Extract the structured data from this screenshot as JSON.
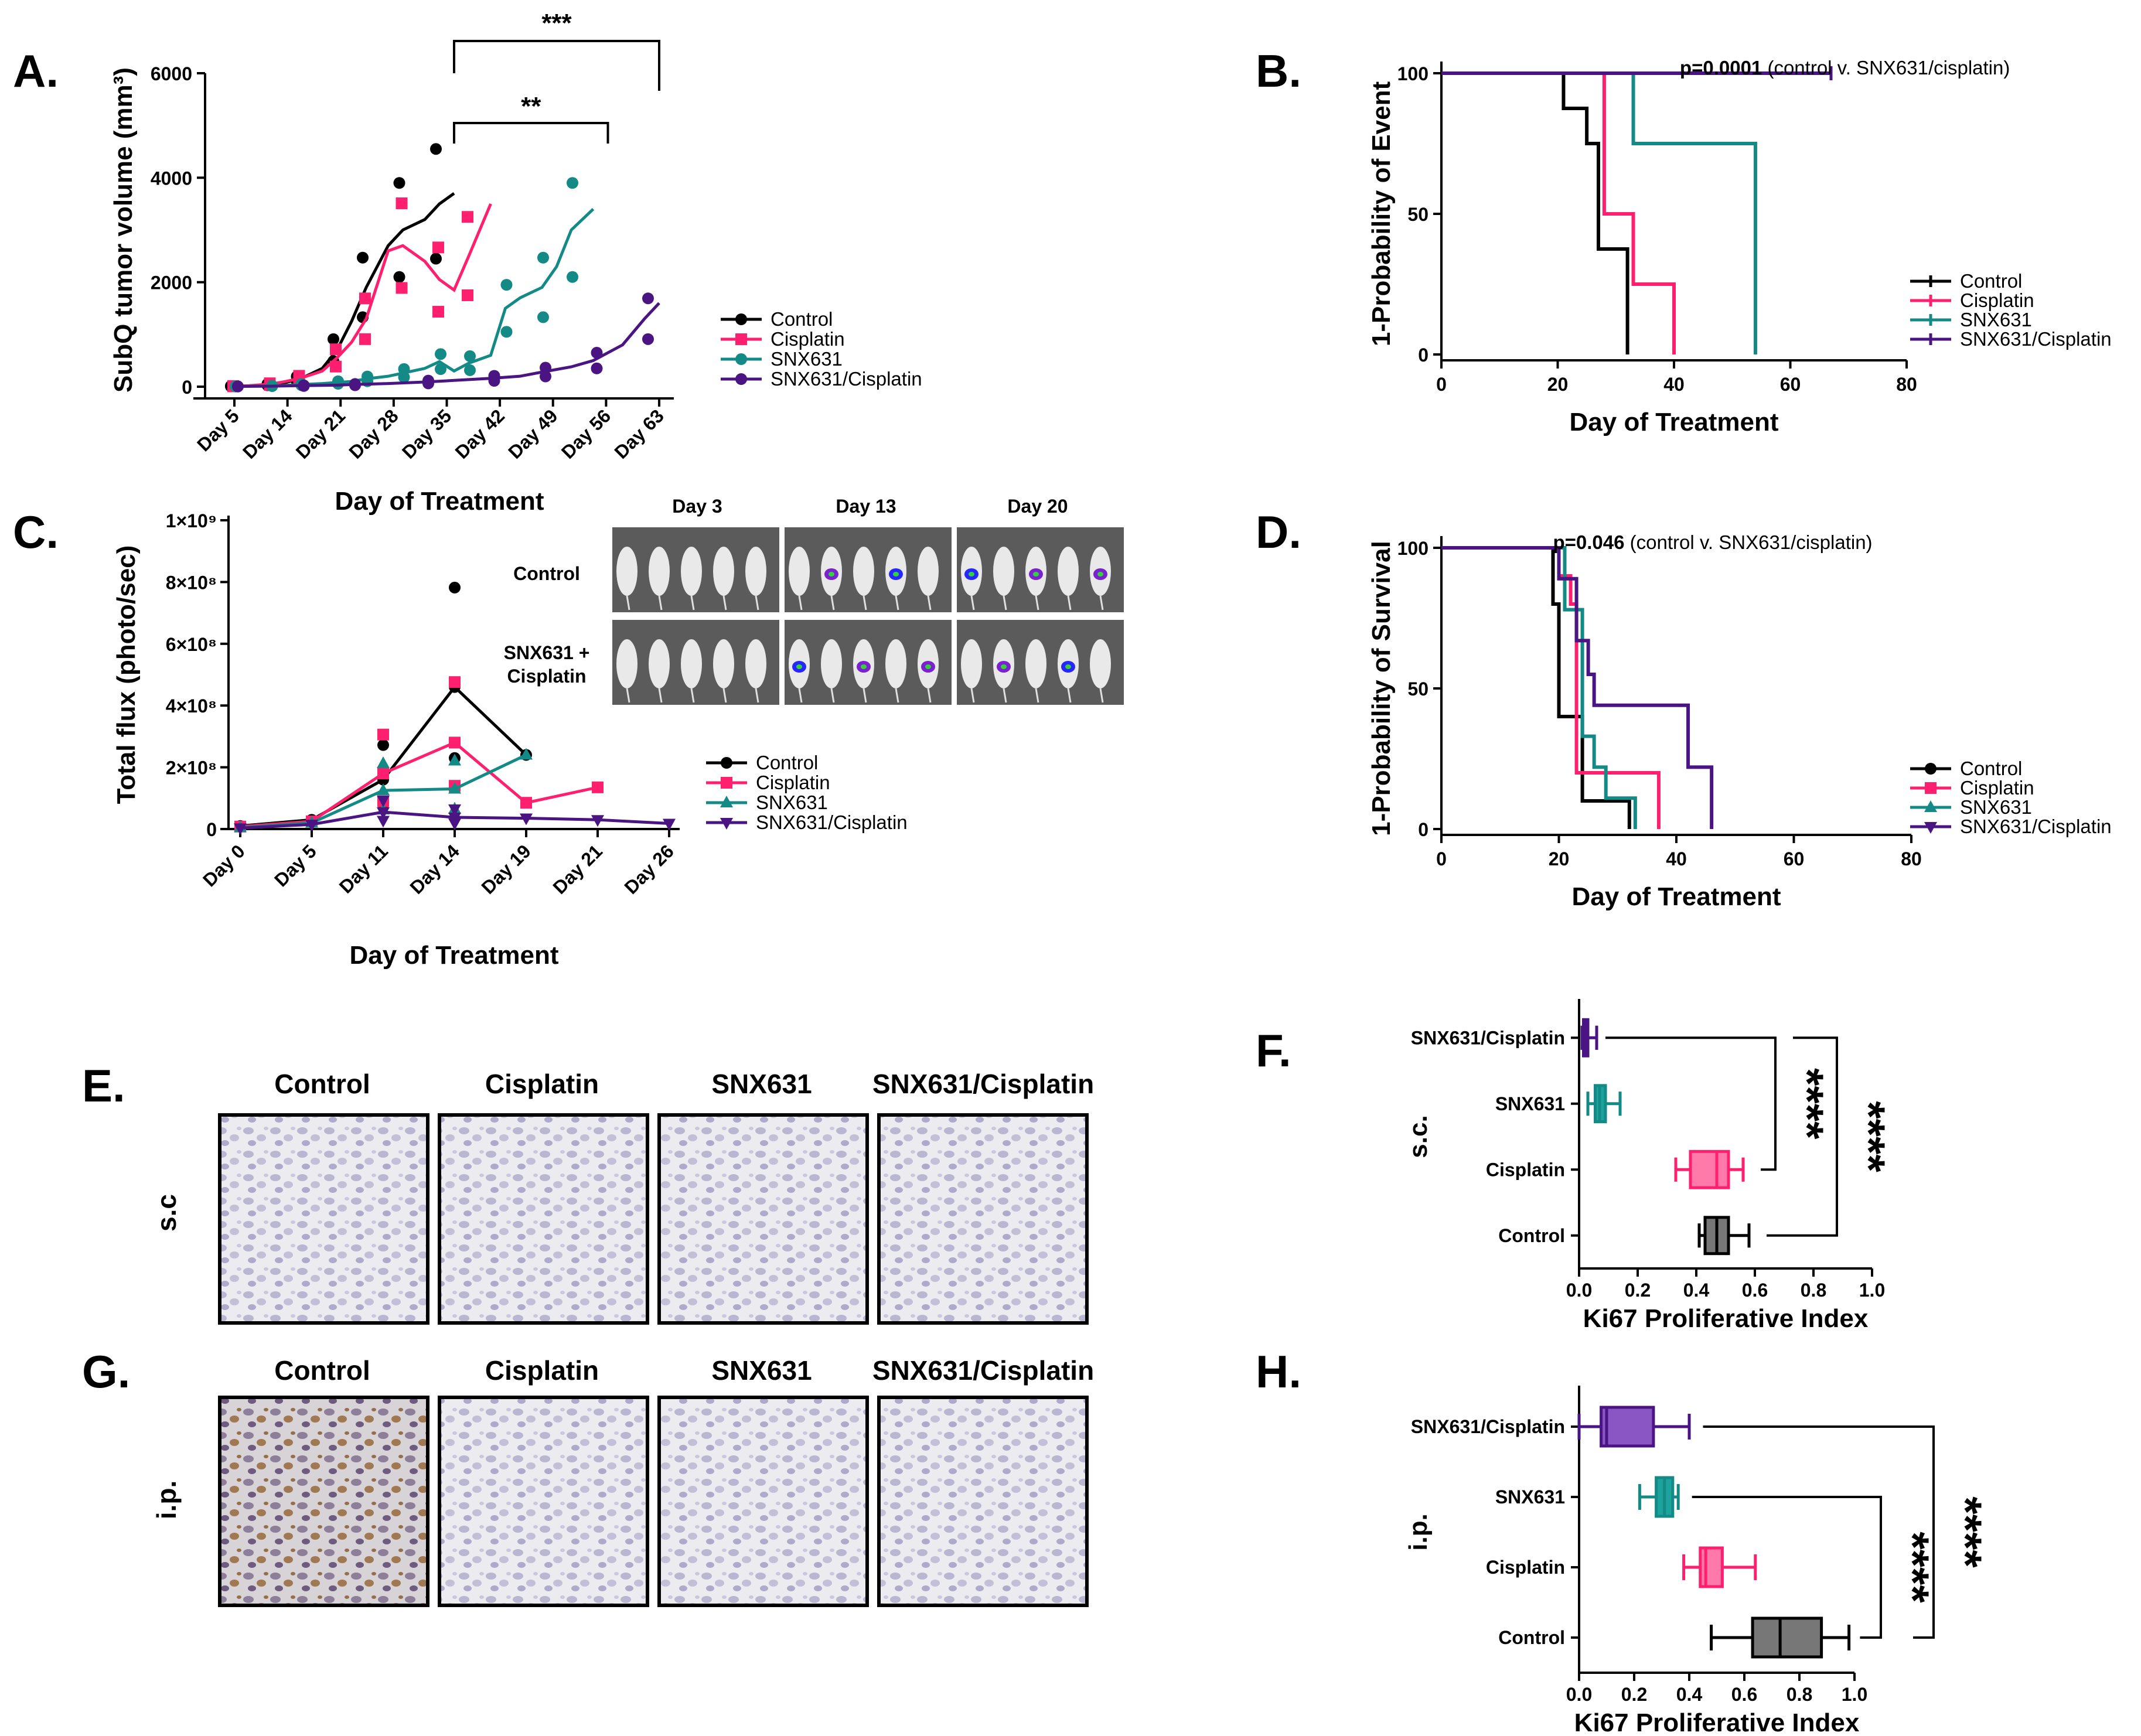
{
  "panels": {
    "a": "A.",
    "b": "B.",
    "c": "C.",
    "d": "D.",
    "e": "E.",
    "f": "F.",
    "g": "G.",
    "h": "H."
  },
  "colors": {
    "control": "#000000",
    "cisplatin": "#ff1f6f",
    "snx631": "#138a86",
    "combo": "#4b1483"
  },
  "series_names": [
    "Control",
    "Cisplatin",
    "SNX631",
    "SNX631/Cisplatin"
  ],
  "chart_data": [
    {
      "id": "A",
      "type": "scatter",
      "ylabel": "SubQ tumor volume (mm³)",
      "xlabel": "Day of Treatment",
      "ylim": [
        0,
        6000
      ],
      "yticks": [
        "0",
        "2000",
        "4000",
        "6000"
      ],
      "categories": [
        "Day 5",
        "Day 14",
        "Day 21",
        "Day 28",
        "Day 35",
        "Day 42",
        "Day 49",
        "Day 56",
        "Day 63"
      ],
      "annotations": [
        "**",
        "***"
      ],
      "series": [
        {
          "name": "Control",
          "x": [
            5,
            7,
            10,
            12,
            14,
            17,
            19,
            21,
            23,
            26,
            28,
            31,
            33,
            35
          ],
          "values": [
            10,
            15,
            40,
            80,
            150,
            350,
            700,
            1250,
            1900,
            2700,
            3000,
            3200,
            3500,
            3700
          ]
        },
        {
          "name": "Cisplatin",
          "x": [
            5,
            7,
            10,
            12,
            14,
            17,
            19,
            21,
            23,
            26,
            28,
            31,
            33,
            35,
            37,
            40
          ],
          "values": [
            10,
            20,
            50,
            100,
            160,
            300,
            550,
            850,
            1300,
            2600,
            2700,
            2400,
            2050,
            1850,
            2500,
            3500
          ]
        },
        {
          "name": "SNX631",
          "x": [
            5,
            7,
            10,
            12,
            14,
            17,
            19,
            21,
            23,
            26,
            28,
            31,
            33,
            35,
            37,
            40,
            42,
            44,
            47,
            49,
            51,
            54
          ],
          "values": [
            5,
            8,
            15,
            25,
            40,
            60,
            80,
            100,
            150,
            200,
            260,
            350,
            480,
            300,
            450,
            600,
            1500,
            1700,
            1900,
            2300,
            3000,
            3400
          ]
        },
        {
          "name": "SNX631/Cisplatin",
          "x": [
            5,
            10,
            14,
            19,
            21,
            26,
            31,
            35,
            40,
            44,
            47,
            51,
            54,
            58,
            61,
            63
          ],
          "values": [
            5,
            10,
            20,
            30,
            40,
            60,
            90,
            120,
            160,
            200,
            280,
            380,
            500,
            800,
            1300,
            1600
          ]
        }
      ]
    },
    {
      "id": "B",
      "type": "line",
      "ylabel": "1-Probability of Event",
      "xlabel": "Day of Treatment",
      "xlim": [
        0,
        80
      ],
      "ylim": [
        0,
        100
      ],
      "xticks": [
        "0",
        "20",
        "40",
        "60",
        "80"
      ],
      "yticks": [
        "0",
        "50",
        "100"
      ],
      "annotation_bold": "p=0.0001",
      "annotation_rest": " (control v. SNX631/cisplatin)",
      "series": [
        {
          "name": "Control",
          "steps": [
            [
              0,
              100
            ],
            [
              21,
              100
            ],
            [
              21,
              87.5
            ],
            [
              25,
              87.5
            ],
            [
              25,
              75
            ],
            [
              27,
              75
            ],
            [
              27,
              37.5
            ],
            [
              32,
              37.5
            ],
            [
              32,
              0
            ]
          ]
        },
        {
          "name": "Cisplatin",
          "steps": [
            [
              0,
              100
            ],
            [
              28,
              100
            ],
            [
              28,
              50
            ],
            [
              33,
              50
            ],
            [
              33,
              25
            ],
            [
              40,
              25
            ],
            [
              40,
              0
            ]
          ]
        },
        {
          "name": "SNX631",
          "steps": [
            [
              0,
              100
            ],
            [
              33,
              100
            ],
            [
              33,
              75
            ],
            [
              54,
              75
            ],
            [
              54,
              0
            ]
          ]
        },
        {
          "name": "SNX631/Cisplatin",
          "steps": [
            [
              0,
              100
            ],
            [
              67,
              100
            ]
          ]
        }
      ]
    },
    {
      "id": "C",
      "type": "scatter",
      "ylabel": "Total flux (photo/sec)",
      "xlabel": "Day of Treatment",
      "ylim": [
        0,
        1000000000
      ],
      "yticks": [
        "0",
        "2×10⁸",
        "4×10⁸",
        "6×10⁸",
        "8×10⁸",
        "1×10⁹"
      ],
      "categories": [
        "Day 0",
        "Day 5",
        "Day 11",
        "Day 14",
        "Day 19",
        "Day 21",
        "Day 26"
      ],
      "series": [
        {
          "name": "Control",
          "values": [
            10000000,
            30000000,
            160000000,
            460000000,
            240000000,
            null,
            null
          ]
        },
        {
          "name": "Cisplatin",
          "values": [
            8000000,
            25000000,
            180000000,
            280000000,
            85000000,
            135000000,
            null
          ]
        },
        {
          "name": "SNX631",
          "values": [
            5000000,
            20000000,
            125000000,
            130000000,
            240000000,
            null,
            null
          ]
        },
        {
          "name": "SNX631/Cisplatin",
          "values": [
            3000000,
            15000000,
            55000000,
            38000000,
            35000000,
            30000000,
            18000000
          ]
        }
      ]
    },
    {
      "id": "D",
      "type": "line",
      "ylabel": "1-Probability of Survival",
      "xlabel": "Day of Treatment",
      "xlim": [
        0,
        80
      ],
      "ylim": [
        0,
        100
      ],
      "xticks": [
        "0",
        "20",
        "40",
        "60",
        "80"
      ],
      "yticks": [
        "0",
        "50",
        "100"
      ],
      "annotation_bold": "p=0.046",
      "annotation_rest": " (control v. SNX631/cisplatin)",
      "series": [
        {
          "name": "Control",
          "steps": [
            [
              0,
              100
            ],
            [
              19,
              100
            ],
            [
              19,
              80
            ],
            [
              20,
              80
            ],
            [
              20,
              40
            ],
            [
              24,
              40
            ],
            [
              24,
              10
            ],
            [
              32,
              10
            ],
            [
              32,
              0
            ]
          ]
        },
        {
          "name": "Cisplatin",
          "steps": [
            [
              0,
              100
            ],
            [
              20,
              100
            ],
            [
              20,
              90
            ],
            [
              22,
              90
            ],
            [
              22,
              80
            ],
            [
              23,
              80
            ],
            [
              23,
              20
            ],
            [
              37,
              20
            ],
            [
              37,
              0
            ]
          ]
        },
        {
          "name": "SNX631",
          "steps": [
            [
              0,
              100
            ],
            [
              21,
              100
            ],
            [
              21,
              78
            ],
            [
              24,
              78
            ],
            [
              24,
              33
            ],
            [
              26,
              33
            ],
            [
              26,
              22
            ],
            [
              28,
              22
            ],
            [
              28,
              11
            ],
            [
              33,
              11
            ],
            [
              33,
              0
            ]
          ]
        },
        {
          "name": "SNX631/Cisplatin",
          "steps": [
            [
              0,
              100
            ],
            [
              20,
              100
            ],
            [
              20,
              89
            ],
            [
              23,
              89
            ],
            [
              23,
              67
            ],
            [
              25,
              67
            ],
            [
              25,
              55
            ],
            [
              26,
              55
            ],
            [
              26,
              44
            ],
            [
              42,
              44
            ],
            [
              42,
              22
            ],
            [
              46,
              22
            ],
            [
              46,
              0
            ]
          ]
        }
      ]
    },
    {
      "id": "F",
      "type": "box",
      "xlabel": "Ki67 Proliferative Index",
      "ylabel": "s.c.",
      "xlim": [
        0,
        1
      ],
      "xticks": [
        "0.0",
        "0.2",
        "0.4",
        "0.6",
        "0.8",
        "1.0"
      ],
      "annotations": [
        "****",
        "****"
      ],
      "categories": [
        "SNX631/Cisplatin",
        "SNX631",
        "Cisplatin",
        "Control"
      ],
      "boxes": [
        {
          "name": "SNX631/Cisplatin",
          "min": 0.01,
          "q1": 0.015,
          "median": 0.02,
          "q3": 0.03,
          "max": 0.06
        },
        {
          "name": "SNX631",
          "min": 0.03,
          "q1": 0.055,
          "median": 0.07,
          "q3": 0.09,
          "max": 0.14
        },
        {
          "name": "Cisplatin",
          "min": 0.33,
          "q1": 0.38,
          "median": 0.47,
          "q3": 0.51,
          "max": 0.56
        },
        {
          "name": "Control",
          "min": 0.41,
          "q1": 0.43,
          "median": 0.47,
          "q3": 0.51,
          "max": 0.58
        }
      ]
    },
    {
      "id": "H",
      "type": "box",
      "xlabel": "Ki67 Proliferative Index",
      "ylabel": "i.p.",
      "xlim": [
        0,
        1
      ],
      "xticks": [
        "0.0",
        "0.2",
        "0.4",
        "0.6",
        "0.8",
        "1.0"
      ],
      "annotations": [
        "****",
        "****"
      ],
      "categories": [
        "SNX631/Cisplatin",
        "SNX631",
        "Cisplatin",
        "Control"
      ],
      "boxes": [
        {
          "name": "SNX631/Cisplatin",
          "min": 0.0,
          "q1": 0.08,
          "median": 0.1,
          "q3": 0.27,
          "max": 0.4
        },
        {
          "name": "SNX631",
          "min": 0.22,
          "q1": 0.28,
          "median": 0.31,
          "q3": 0.34,
          "max": 0.36
        },
        {
          "name": "Cisplatin",
          "min": 0.38,
          "q1": 0.44,
          "median": 0.46,
          "q3": 0.52,
          "max": 0.64
        },
        {
          "name": "Control",
          "min": 0.48,
          "q1": 0.63,
          "median": 0.73,
          "q3": 0.88,
          "max": 0.98
        }
      ]
    }
  ],
  "imaging": {
    "days": [
      "Day 3",
      "Day 13",
      "Day 20"
    ],
    "rows": [
      "Control",
      "SNX631 +\nCisplatin"
    ]
  },
  "histology": {
    "columns": [
      "Control",
      "Cisplatin",
      "SNX631",
      "SNX631/Cisplatin"
    ],
    "e_row_label": "s.c",
    "g_row_label": "i.p."
  }
}
